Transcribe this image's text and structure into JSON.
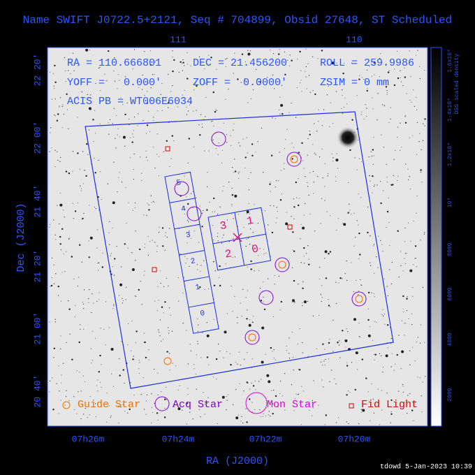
{
  "header": {
    "title": "Name SWIFT J0722.5+2121, Seq # 704899, Obsid 27648, ST Scheduled"
  },
  "info": [
    "RA = 110.666801",
    "DEC = 21.456200",
    "ROLL = 259.9986",
    "YOFF =   0.000'",
    "ZOFF =  0.0000'",
    "ZSIM = 0 mm",
    "ACIS PB = WT006E6034"
  ],
  "axes": {
    "top_ticks": [
      "111",
      "110"
    ],
    "bottom_ticks": [
      "07h26m",
      "07h24m",
      "07h22m",
      "07h20m"
    ],
    "left_ticks": [
      "22 20'",
      "22 00'",
      "21 40'",
      "21 20'",
      "21 00'",
      "20 40'"
    ],
    "x_title": "RA (J2000)",
    "y_title": "Dec (J2000)"
  },
  "colorbar": {
    "label": "DSS scaled density",
    "ticks": [
      "2000",
      "4000",
      "6000",
      "8000",
      "10⁴",
      "1.2x10⁴",
      "1.4x10⁴",
      "1.6x10⁴"
    ]
  },
  "chips": {
    "acis_i": [
      "3",
      "1",
      "2",
      "0"
    ],
    "acis_s": [
      "5",
      "4",
      "3",
      "2",
      "1",
      "0"
    ]
  },
  "legend": [
    "Guide Star",
    "Acq Star",
    "Mon Star",
    "Fid Light"
  ],
  "footer": "tdowd  5-Jan-2023 10:39"
}
